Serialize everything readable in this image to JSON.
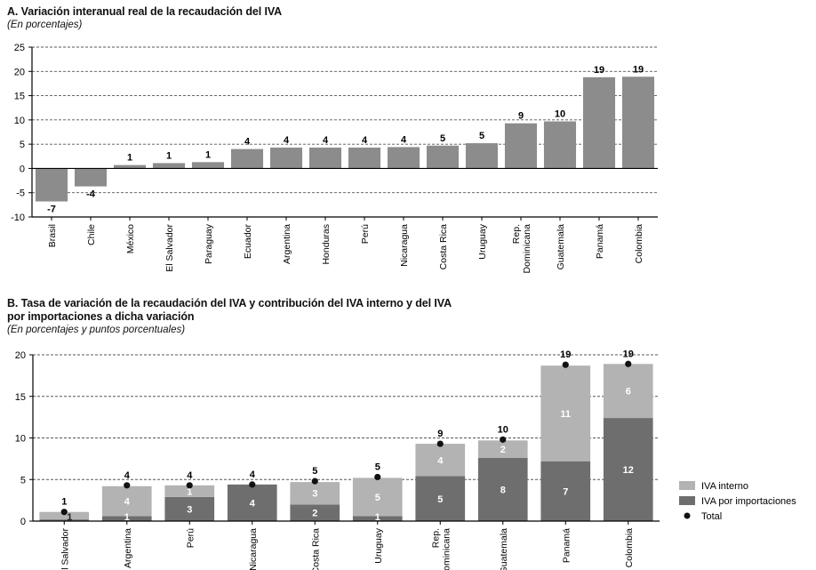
{
  "chart_data": [
    {
      "type": "bar",
      "title": "A. Variación interanual real de la recaudación del IVA",
      "subtitle": "(En porcentajes)",
      "ylim": [
        -10,
        25
      ],
      "yticks": [
        "25",
        "20",
        "15",
        "10",
        "5",
        "0",
        "-5",
        "-10"
      ],
      "grid": true,
      "categories": [
        "Brasil",
        "Chile",
        "México",
        "El Salvador",
        "Paraguay",
        "Ecuador",
        "Argentina",
        "Honduras",
        "Perú",
        "Nicaragua",
        "Costa Rica",
        "Uruguay",
        "Rep. Dominicana",
        "Guatemala",
        "Panamá",
        "Colombia"
      ],
      "values": [
        -6.8,
        -3.7,
        0.7,
        1.1,
        1.3,
        4.0,
        4.3,
        4.3,
        4.3,
        4.4,
        4.7,
        5.2,
        9.3,
        9.7,
        18.8,
        18.9
      ],
      "labels": [
        "-7",
        "-4",
        "1",
        "1",
        "1",
        "4",
        "4",
        "4",
        "4",
        "4",
        "5",
        "5",
        "9",
        "10",
        "19",
        "19"
      ],
      "bar_color": "#8c8c8c"
    },
    {
      "type": "bar",
      "stacked": true,
      "title": "B. Tasa de variación de la recaudación del IVA y contribución del IVA interno y del IVA por importaciones a dicha variación",
      "title_line1": "B. Tasa de variación de la recaudación del IVA y contribución del IVA interno y del IVA",
      "title_line2": "por importaciones a dicha variación",
      "subtitle": "(En porcentajes y puntos porcentuales)",
      "ylim": [
        0,
        20
      ],
      "yticks": [
        "20",
        "15",
        "10",
        "5",
        "0"
      ],
      "grid": true,
      "categories": [
        "El Salvador",
        "Argentina",
        "Perú",
        "Nicaragua",
        "Costa Rica",
        "Uruguay",
        "Rep. Dominicana",
        "Guatemala",
        "Panamá",
        "Colombia"
      ],
      "series": [
        {
          "name": "IVA por importaciones",
          "color": "#6e6e6e",
          "values": [
            0.2,
            0.6,
            2.9,
            4.4,
            2.0,
            0.6,
            5.4,
            7.6,
            7.2,
            12.4
          ],
          "labels": [
            "",
            "1",
            "3",
            "4",
            "2",
            "1",
            "5",
            "8",
            "7",
            "12"
          ]
        },
        {
          "name": "IVA interno",
          "color": "#b3b3b3",
          "values": [
            0.9,
            3.6,
            1.4,
            0.0,
            2.7,
            4.6,
            3.9,
            2.1,
            11.5,
            6.5
          ],
          "labels": [
            "1",
            "4",
            "1",
            "",
            "3",
            "5",
            "4",
            "2",
            "11",
            "6"
          ]
        }
      ],
      "total": {
        "name": "Total",
        "values": [
          1.1,
          4.3,
          4.3,
          4.4,
          4.8,
          5.3,
          9.3,
          9.8,
          18.8,
          18.9
        ],
        "labels": [
          "1",
          "4",
          "4",
          "4",
          "5",
          "5",
          "9",
          "10",
          "19",
          "19"
        ]
      },
      "legend": [
        "IVA interno",
        "IVA por importaciones",
        "Total"
      ],
      "legend_position": "right"
    }
  ]
}
